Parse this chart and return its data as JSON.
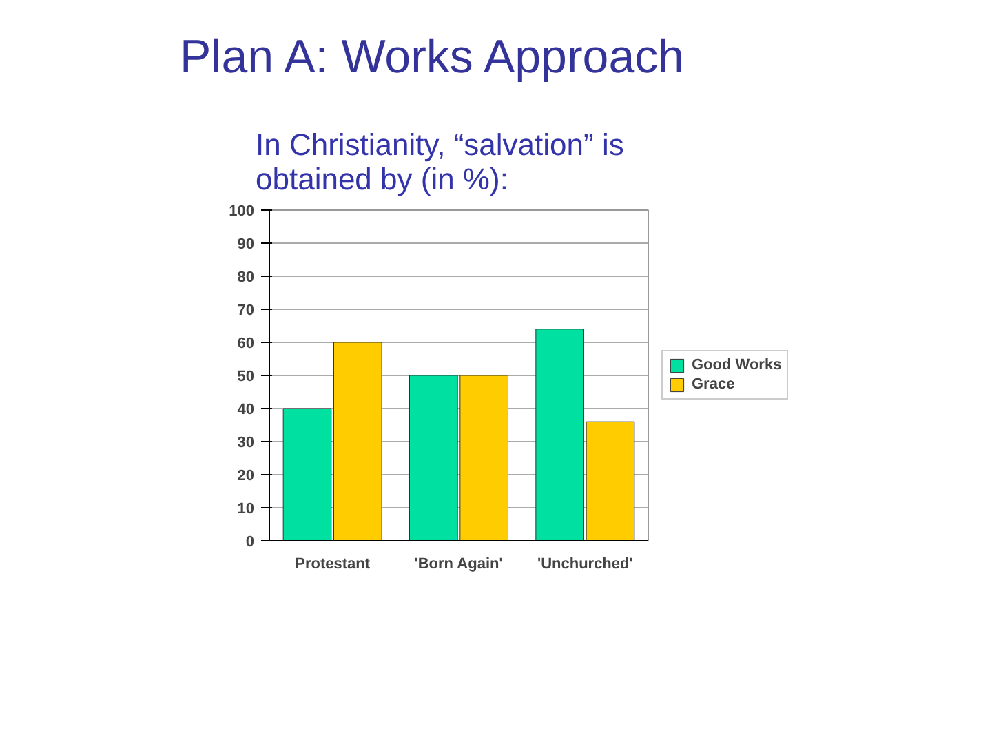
{
  "chart_data": {
    "type": "bar",
    "title": "Plan A: Works Approach",
    "subtitle": "In Christianity, “salvation” is obtained by (in %):",
    "categories": [
      "Protestant",
      "'Born Again'",
      "'Unchurched'"
    ],
    "series": [
      {
        "name": "Good Works",
        "color": "#00e0a0",
        "values": [
          40,
          50,
          64
        ]
      },
      {
        "name": "Grace",
        "color": "#ffcc00",
        "values": [
          60,
          50,
          36
        ]
      }
    ],
    "ylim": [
      0,
      100
    ],
    "yticks": [
      0,
      10,
      20,
      30,
      40,
      50,
      60,
      70,
      80,
      90,
      100
    ],
    "grid": "y",
    "legend": "right"
  }
}
